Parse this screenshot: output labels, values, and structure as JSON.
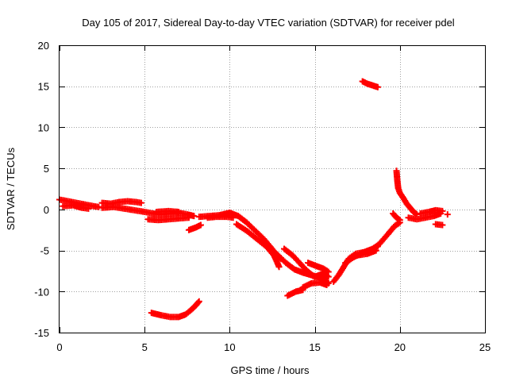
{
  "chart_data": {
    "type": "scatter",
    "title": "Day 105 of 2017, Sidereal Day-to-day VTEC variation (SDTVAR) for receiver pdel",
    "xlabel": "GPS time / hours",
    "ylabel": "SDTVAR / TECUs",
    "xlim": [
      0,
      25
    ],
    "ylim": [
      -15,
      20
    ],
    "xticks": [
      0,
      5,
      10,
      15,
      20,
      25
    ],
    "yticks": [
      -15,
      -10,
      -5,
      0,
      5,
      10,
      15,
      20
    ],
    "grid": true,
    "marker": "+",
    "series": [
      {
        "name": "SDTVAR",
        "color": "#ff0000",
        "tracks": [
          [
            [
              0.0,
              1.2
            ],
            [
              0.5,
              1.0
            ],
            [
              1.0,
              0.8
            ],
            [
              1.5,
              0.6
            ],
            [
              2.0,
              0.4
            ],
            [
              2.3,
              0.3
            ]
          ],
          [
            [
              0.2,
              0.4
            ],
            [
              0.8,
              0.5
            ],
            [
              1.3,
              0.2
            ],
            [
              1.7,
              0.1
            ]
          ],
          [
            [
              2.5,
              0.8
            ],
            [
              3.0,
              0.7
            ],
            [
              3.5,
              0.9
            ],
            [
              4.0,
              1.0
            ],
            [
              4.5,
              0.9
            ],
            [
              4.8,
              0.8
            ]
          ],
          [
            [
              2.5,
              0.2
            ],
            [
              3.2,
              0.3
            ],
            [
              3.8,
              0.1
            ],
            [
              4.4,
              -0.1
            ],
            [
              5.0,
              -0.3
            ],
            [
              5.5,
              -0.5
            ],
            [
              6.0,
              -0.6
            ],
            [
              6.5,
              -0.5
            ],
            [
              7.0,
              -0.4
            ],
            [
              7.5,
              -0.6
            ],
            [
              7.9,
              -0.8
            ]
          ],
          [
            [
              5.2,
              -1.2
            ],
            [
              5.8,
              -1.3
            ],
            [
              6.4,
              -1.2
            ],
            [
              7.0,
              -1.1
            ],
            [
              7.6,
              -1.0
            ]
          ],
          [
            [
              5.7,
              -0.3
            ],
            [
              6.4,
              -0.2
            ],
            [
              7.0,
              -0.3
            ]
          ],
          [
            [
              7.6,
              -2.5
            ],
            [
              8.0,
              -2.2
            ],
            [
              8.3,
              -1.9
            ]
          ],
          [
            [
              8.2,
              -0.9
            ],
            [
              8.8,
              -0.8
            ],
            [
              9.4,
              -0.7
            ],
            [
              10.0,
              -0.4
            ],
            [
              10.5,
              -0.8
            ],
            [
              11.0,
              -1.6
            ],
            [
              11.5,
              -2.6
            ],
            [
              12.0,
              -3.6
            ],
            [
              12.4,
              -4.6
            ],
            [
              12.8,
              -5.6
            ],
            [
              13.0,
              -6.0
            ]
          ],
          [
            [
              10.4,
              -1.8
            ],
            [
              11.0,
              -2.6
            ],
            [
              11.6,
              -3.6
            ],
            [
              12.2,
              -4.6
            ],
            [
              12.6,
              -5.6
            ],
            [
              12.8,
              -6.5
            ],
            [
              12.9,
              -7.0
            ]
          ],
          [
            [
              8.7,
              -1.0
            ],
            [
              9.2,
              -0.9
            ],
            [
              9.8,
              -0.9
            ],
            [
              10.2,
              -1.0
            ]
          ],
          [
            [
              12.8,
              -5.5
            ],
            [
              13.3,
              -6.5
            ],
            [
              13.8,
              -7.3
            ],
            [
              14.3,
              -7.7
            ],
            [
              14.8,
              -8.0
            ],
            [
              15.3,
              -8.3
            ],
            [
              15.6,
              -8.6
            ],
            [
              15.8,
              -9.0
            ]
          ],
          [
            [
              13.2,
              -4.8
            ],
            [
              13.7,
              -5.6
            ],
            [
              14.1,
              -6.5
            ],
            [
              14.5,
              -7.4
            ],
            [
              14.9,
              -8.1
            ]
          ],
          [
            [
              14.6,
              -6.5
            ],
            [
              15.1,
              -6.9
            ],
            [
              15.5,
              -7.2
            ],
            [
              15.8,
              -7.6
            ]
          ],
          [
            [
              14.3,
              -9.5
            ],
            [
              14.8,
              -9.0
            ],
            [
              15.3,
              -8.9
            ],
            [
              15.7,
              -9.2
            ]
          ],
          [
            [
              13.4,
              -10.5
            ],
            [
              13.9,
              -10.0
            ],
            [
              14.3,
              -9.8
            ]
          ],
          [
            [
              15.0,
              -8.2
            ],
            [
              15.5,
              -7.8
            ],
            [
              15.8,
              -8.2
            ]
          ],
          [
            [
              16.1,
              -8.8
            ],
            [
              16.4,
              -8.0
            ],
            [
              16.7,
              -7.0
            ],
            [
              17.0,
              -6.0
            ],
            [
              17.4,
              -5.4
            ],
            [
              17.9,
              -5.2
            ],
            [
              18.4,
              -4.8
            ],
            [
              18.8,
              -4.2
            ],
            [
              19.3,
              -3.0
            ],
            [
              19.7,
              -2.0
            ],
            [
              20.0,
              -1.6
            ]
          ],
          [
            [
              16.8,
              -6.5
            ],
            [
              17.3,
              -5.8
            ],
            [
              17.8,
              -5.3
            ],
            [
              18.3,
              -4.9
            ],
            [
              18.7,
              -4.5
            ]
          ],
          [
            [
              17.5,
              -5.6
            ],
            [
              18.1,
              -5.4
            ],
            [
              18.6,
              -5.0
            ]
          ],
          [
            [
              19.6,
              -0.5
            ],
            [
              19.8,
              -1.0
            ],
            [
              20.0,
              -1.3
            ]
          ],
          [
            [
              19.8,
              4.7
            ],
            [
              19.85,
              3.5
            ],
            [
              19.9,
              2.6
            ],
            [
              20.0,
              2.0
            ],
            [
              20.2,
              1.4
            ],
            [
              20.4,
              0.7
            ],
            [
              20.6,
              0.2
            ],
            [
              20.8,
              -0.3
            ],
            [
              21.0,
              -0.6
            ]
          ],
          [
            [
              20.5,
              -1.0
            ],
            [
              21.0,
              -1.2
            ],
            [
              21.5,
              -1.0
            ],
            [
              22.0,
              -0.8
            ],
            [
              22.4,
              -0.5
            ]
          ],
          [
            [
              21.2,
              -0.5
            ],
            [
              21.7,
              -0.3
            ],
            [
              22.1,
              -0.1
            ],
            [
              22.5,
              -0.2
            ]
          ],
          [
            [
              22.1,
              -1.8
            ],
            [
              22.5,
              -1.9
            ]
          ],
          [
            [
              22.8,
              -0.6
            ]
          ],
          [
            [
              5.4,
              -12.6
            ],
            [
              6.0,
              -12.9
            ],
            [
              6.5,
              -13.1
            ],
            [
              7.0,
              -13.1
            ],
            [
              7.4,
              -12.8
            ],
            [
              7.7,
              -12.3
            ],
            [
              8.0,
              -11.7
            ],
            [
              8.2,
              -11.2
            ]
          ],
          [
            [
              17.8,
              15.6
            ],
            [
              18.1,
              15.3
            ],
            [
              18.4,
              15.1
            ],
            [
              18.7,
              14.9
            ]
          ]
        ]
      }
    ]
  }
}
